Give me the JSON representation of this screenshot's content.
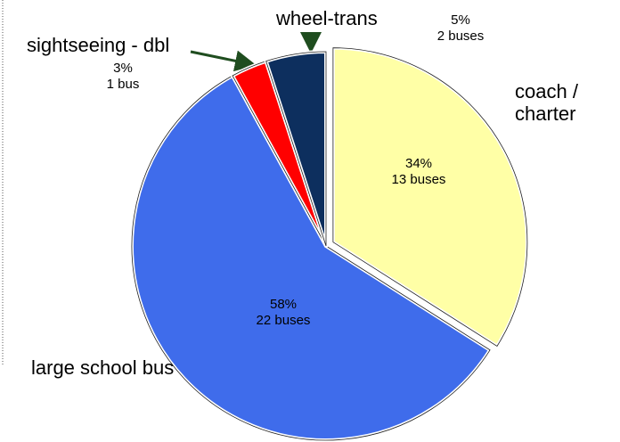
{
  "chart_data": {
    "type": "pie",
    "categories": [
      "coach / charter",
      "large school bus",
      "sightseeing - dbl",
      "wheel-trans"
    ],
    "values": [
      34,
      58,
      3,
      5
    ],
    "value_labels": [
      "34%",
      "58%",
      "3%",
      "5%"
    ],
    "counts": [
      13,
      22,
      1,
      2
    ],
    "count_labels": [
      "13 buses",
      "22 buses",
      "1 bus",
      "2 buses"
    ],
    "colors": [
      "#ffffa6",
      "#3f6ceb",
      "#ff0000",
      "#0d2f5e"
    ]
  }
}
